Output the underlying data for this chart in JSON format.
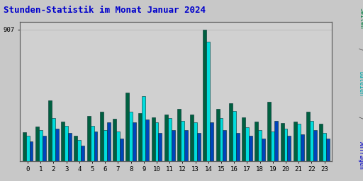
{
  "title": "Stunden-Statistik im Monat Januar 2024",
  "title_color": "#0000cc",
  "title_fontsize": 9,
  "background_color": "#c8c8c8",
  "plot_bg_color": "#d0d0d0",
  "grid_color": "#b8b8b8",
  "hours": [
    0,
    1,
    2,
    3,
    4,
    5,
    6,
    7,
    8,
    9,
    10,
    11,
    12,
    13,
    14,
    15,
    16,
    17,
    18,
    19,
    20,
    21,
    22,
    23
  ],
  "seiten": [
    200,
    240,
    420,
    270,
    175,
    310,
    340,
    290,
    470,
    330,
    300,
    320,
    360,
    320,
    907,
    360,
    400,
    300,
    270,
    410,
    260,
    270,
    340,
    255
  ],
  "dateien": [
    175,
    215,
    295,
    245,
    145,
    245,
    215,
    205,
    340,
    445,
    265,
    295,
    275,
    265,
    820,
    295,
    345,
    235,
    215,
    205,
    225,
    255,
    275,
    195
  ],
  "anfragen": [
    135,
    175,
    225,
    195,
    105,
    205,
    265,
    155,
    265,
    285,
    195,
    215,
    215,
    195,
    265,
    215,
    195,
    175,
    155,
    275,
    175,
    185,
    215,
    155
  ],
  "color_seiten": "#006040",
  "color_dateien": "#00dddd",
  "color_anfragen": "#0044bb",
  "bar_edge_color": "#003030",
  "ylim": [
    0,
    960
  ],
  "ytick_val": 907,
  "fontsize_ticks": 6.5,
  "bar_width": 0.27,
  "right_label_seiten_color": "#008040",
  "right_label_dateien_color": "#00aaaa",
  "right_label_anfragen_color": "#0000cc",
  "right_label_sep_color": "#404040"
}
